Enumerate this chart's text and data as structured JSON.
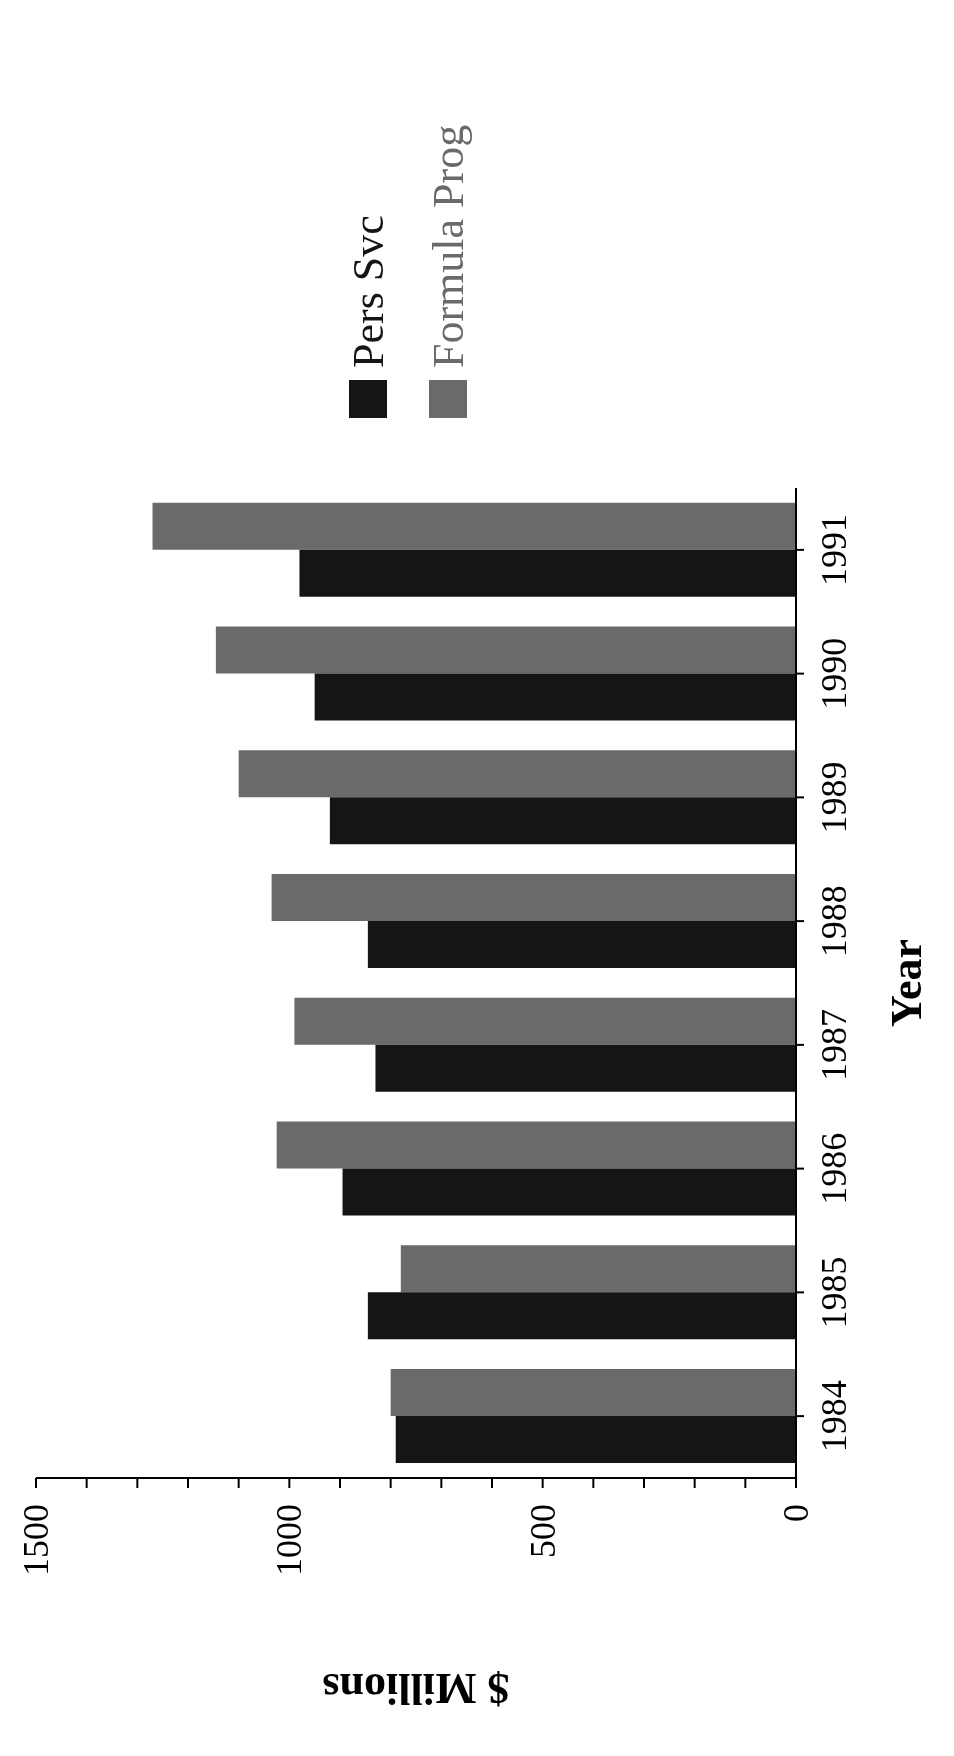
{
  "chart_data": {
    "type": "bar",
    "orientation": "horizontal",
    "xlabel": "$ Millions",
    "ylabel": "Year",
    "categories": [
      "1991",
      "1990",
      "1989",
      "1988",
      "1987",
      "1986",
      "1985",
      "1984"
    ],
    "series": [
      {
        "name": "Pers Svc",
        "color": "#151515",
        "values": [
          980,
          950,
          920,
          845,
          830,
          895,
          845,
          790
        ]
      },
      {
        "name": "Formula Prog",
        "color": "#6a6a6a",
        "values": [
          1270,
          1145,
          1100,
          1035,
          990,
          1025,
          780,
          800
        ]
      }
    ],
    "xlim": [
      1500,
      0
    ],
    "xticks": [
      1500,
      {
        "value": 1400,
        "label": null
      },
      {
        "value": 1300,
        "label": null
      },
      {
        "value": 1200,
        "label": null
      },
      {
        "value": 1100,
        "label": null
      },
      1000,
      {
        "value": 900,
        "label": null
      },
      {
        "value": 800,
        "label": null
      },
      {
        "value": 700,
        "label": null
      },
      {
        "value": 600,
        "label": null
      },
      500,
      {
        "value": 400,
        "label": null
      },
      {
        "value": 300,
        "label": null
      },
      {
        "value": 200,
        "label": null
      },
      {
        "value": 100,
        "label": null
      },
      0
    ],
    "grid": false,
    "legend": "top"
  }
}
